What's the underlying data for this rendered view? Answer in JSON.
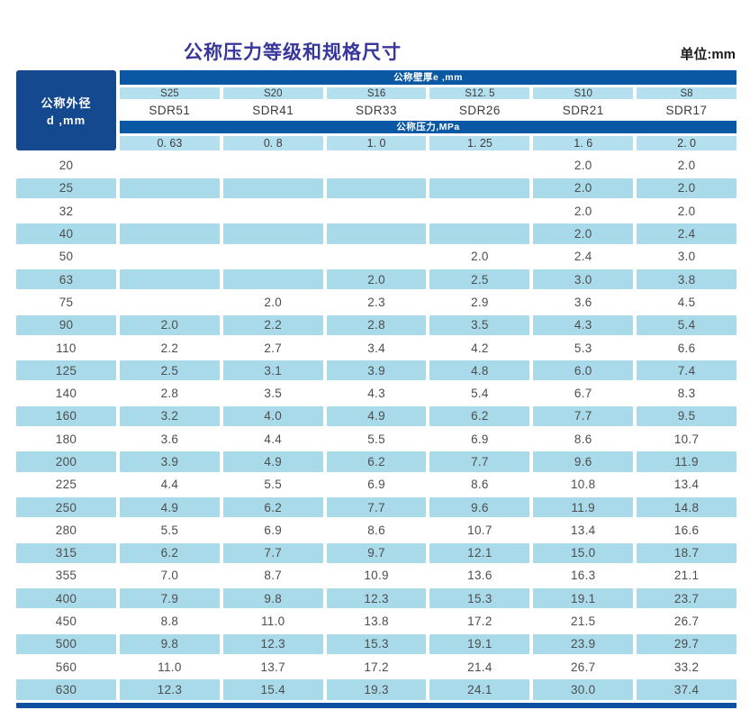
{
  "page": {
    "title": "公称压力等级和规格尺寸",
    "unit_label": "单位:mm"
  },
  "table": {
    "corner_header": {
      "line1": "公称外径",
      "line2": "d ,mm"
    },
    "wall_thickness_header": "公称壁厚e ,mm",
    "pressure_header": "公称压力,MPa",
    "series_labels": [
      "S25",
      "S20",
      "S16",
      "S12. 5",
      "S10",
      "S8"
    ],
    "sdr_labels": [
      "SDR51",
      "SDR41",
      "SDR33",
      "SDR26",
      "SDR21",
      "SDR17"
    ],
    "pressure_values": [
      "0. 63",
      "0. 8",
      "1. 0",
      "1. 25",
      "1. 6",
      "2. 0"
    ],
    "rows": [
      {
        "d": "20",
        "values": [
          "",
          "",
          "",
          "",
          "2.0",
          "2.0"
        ]
      },
      {
        "d": "25",
        "values": [
          "",
          "",
          "",
          "",
          "2.0",
          "2.0"
        ]
      },
      {
        "d": "32",
        "values": [
          "",
          "",
          "",
          "",
          "2.0",
          "2.0"
        ]
      },
      {
        "d": "40",
        "values": [
          "",
          "",
          "",
          "",
          "2.0",
          "2.4"
        ]
      },
      {
        "d": "50",
        "values": [
          "",
          "",
          "",
          "2.0",
          "2.4",
          "3.0"
        ]
      },
      {
        "d": "63",
        "values": [
          "",
          "",
          "2.0",
          "2.5",
          "3.0",
          "3.8"
        ]
      },
      {
        "d": "75",
        "values": [
          "",
          "2.0",
          "2.3",
          "2.9",
          "3.6",
          "4.5"
        ]
      },
      {
        "d": "90",
        "values": [
          "2.0",
          "2.2",
          "2.8",
          "3.5",
          "4.3",
          "5.4"
        ]
      },
      {
        "d": "110",
        "values": [
          "2.2",
          "2.7",
          "3.4",
          "4.2",
          "5.3",
          "6.6"
        ]
      },
      {
        "d": "125",
        "values": [
          "2.5",
          "3.1",
          "3.9",
          "4.8",
          "6.0",
          "7.4"
        ]
      },
      {
        "d": "140",
        "values": [
          "2.8",
          "3.5",
          "4.3",
          "5.4",
          "6.7",
          "8.3"
        ]
      },
      {
        "d": "160",
        "values": [
          "3.2",
          "4.0",
          "4.9",
          "6.2",
          "7.7",
          "9.5"
        ]
      },
      {
        "d": "180",
        "values": [
          "3.6",
          "4.4",
          "5.5",
          "6.9",
          "8.6",
          "10.7"
        ]
      },
      {
        "d": "200",
        "values": [
          "3.9",
          "4.9",
          "6.2",
          "7.7",
          "9.6",
          "11.9"
        ]
      },
      {
        "d": "225",
        "values": [
          "4.4",
          "5.5",
          "6.9",
          "8.6",
          "10.8",
          "13.4"
        ]
      },
      {
        "d": "250",
        "values": [
          "4.9",
          "6.2",
          "7.7",
          "9.6",
          "11.9",
          "14.8"
        ]
      },
      {
        "d": "280",
        "values": [
          "5.5",
          "6.9",
          "8.6",
          "10.7",
          "13.4",
          "16.6"
        ]
      },
      {
        "d": "315",
        "values": [
          "6.2",
          "7.7",
          "9.7",
          "12.1",
          "15.0",
          "18.7"
        ]
      },
      {
        "d": "355",
        "values": [
          "7.0",
          "8.7",
          "10.9",
          "13.6",
          "16.3",
          "21.1"
        ]
      },
      {
        "d": "400",
        "values": [
          "7.9",
          "9.8",
          "12.3",
          "15.3",
          "19.1",
          "23.7"
        ]
      },
      {
        "d": "450",
        "values": [
          "8.8",
          "11.0",
          "13.8",
          "17.2",
          "21.5",
          "26.7"
        ]
      },
      {
        "d": "500",
        "values": [
          "9.8",
          "12.3",
          "15.3",
          "19.1",
          "23.9",
          "29.7"
        ]
      },
      {
        "d": "560",
        "values": [
          "11.0",
          "13.7",
          "17.2",
          "21.4",
          "26.7",
          "33.2"
        ]
      },
      {
        "d": "630",
        "values": [
          "12.3",
          "15.4",
          "19.3",
          "24.1",
          "30.0",
          "37.4"
        ]
      }
    ]
  },
  "colors": {
    "title": "#36369b",
    "header_bar": "#0a57a4",
    "corner_cell": "#15498f",
    "header_light": "#b4dfee",
    "stripe": "#a9daea",
    "bottom_rule": "#0d4fa0"
  }
}
